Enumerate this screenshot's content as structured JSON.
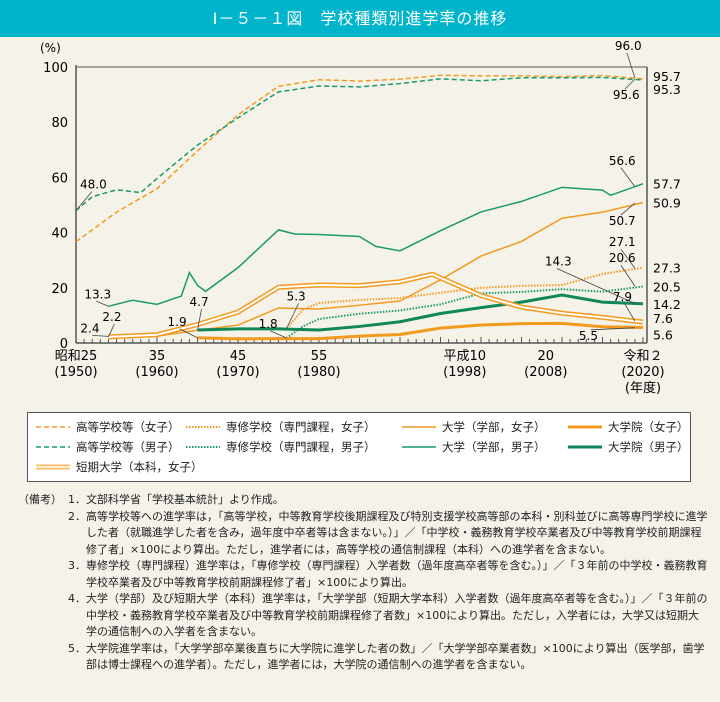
{
  "title": "Ⅰ－５－１図　学校種類別進学率の推移",
  "colors": {
    "title_bar": "#00b4cc",
    "orange": "#f39a1e",
    "light_orange": "#f7bd60",
    "green": "#1a9a6a",
    "dark_green": "#10875a"
  },
  "chart_data": {
    "type": "line",
    "ylabel": "(%)",
    "ylim": [
      0,
      100
    ],
    "xlim": [
      1950,
      2020
    ],
    "yticks": [
      0,
      20,
      40,
      60,
      80,
      100
    ],
    "xticks": [
      {
        "year": 1950,
        "label1": "昭和25",
        "label2": "(1950)"
      },
      {
        "year": 1960,
        "label1": "35",
        "label2": "(1960)"
      },
      {
        "year": 1970,
        "label1": "45",
        "label2": "(1970)"
      },
      {
        "year": 1980,
        "label1": "55",
        "label2": "(1980)"
      },
      {
        "year": 1998,
        "label1": "平成10",
        "label2": "(1998)"
      },
      {
        "year": 2008,
        "label1": "20",
        "label2": "(2008)"
      },
      {
        "year": 2020,
        "label1": "令和２",
        "label2": "(2020)",
        "label3": "(年度)"
      }
    ],
    "grid": false,
    "legend_placement": "bottom",
    "series": [
      {
        "name": "高等学校等（女子）",
        "style": "dashed",
        "color": "#f39a1e",
        "x": [
          1950,
          1955,
          1960,
          1965,
          1970,
          1975,
          1980,
          1985,
          1990,
          1995,
          2000,
          2005,
          2010,
          2015,
          2020
        ],
        "y": [
          36.7,
          47.4,
          55.9,
          69.6,
          82.7,
          93.0,
          95.4,
          94.9,
          95.6,
          97.0,
          96.8,
          96.8,
          96.5,
          96.9,
          95.7
        ]
      },
      {
        "name": "高等学校等（男子）",
        "style": "dashed",
        "color": "#1a9a6a",
        "x": [
          1950,
          1952,
          1955,
          1958,
          1960,
          1965,
          1970,
          1975,
          1980,
          1985,
          1990,
          1995,
          2000,
          2005,
          2010,
          2015,
          2020
        ],
        "y": [
          48.0,
          53.0,
          55.5,
          54.5,
          59.6,
          71.7,
          81.6,
          91.0,
          93.1,
          92.8,
          94.0,
          95.7,
          95.0,
          96.1,
          96.1,
          96.2,
          95.3
        ]
      },
      {
        "name": "専修学校（専門課程，女子）",
        "style": "dotted",
        "color": "#f39a1e",
        "x": [
          1976,
          1978,
          1980,
          1985,
          1990,
          1995,
          2000,
          2005,
          2010,
          2015,
          2020
        ],
        "y": [
          5.3,
          12.0,
          14.5,
          15.6,
          16.3,
          18.2,
          20.0,
          20.7,
          21.0,
          25.0,
          27.3
        ]
      },
      {
        "name": "専修学校（専門課程，男子）",
        "style": "dotted",
        "color": "#1a9a6a",
        "x": [
          1976,
          1978,
          1980,
          1985,
          1990,
          1995,
          2000,
          2005,
          2010,
          2015,
          2020
        ],
        "y": [
          1.8,
          6.0,
          8.7,
          10.6,
          11.8,
          14.0,
          18.0,
          18.5,
          19.5,
          18.6,
          20.5
        ]
      },
      {
        "name": "大学（学部，女子）",
        "style": "solid",
        "color": "#f39a1e",
        "x": [
          1954,
          1960,
          1965,
          1970,
          1975,
          1980,
          1985,
          1990,
          1995,
          2000,
          2005,
          2010,
          2015,
          2020
        ],
        "y": [
          2.4,
          2.5,
          4.6,
          6.5,
          12.7,
          12.3,
          13.7,
          15.2,
          22.9,
          31.5,
          36.8,
          45.2,
          47.4,
          50.9
        ]
      },
      {
        "name": "大学（学部，男子）",
        "style": "solid",
        "color": "#1a9a6a",
        "x": [
          1954,
          1957,
          1960,
          1963,
          1964,
          1965,
          1966,
          1970,
          1975,
          1977,
          1980,
          1985,
          1987,
          1990,
          1995,
          2000,
          2005,
          2010,
          2015,
          2016,
          2020
        ],
        "y": [
          13.3,
          15.5,
          14.0,
          17.0,
          25.5,
          20.9,
          18.7,
          27.3,
          41.0,
          39.5,
          39.3,
          38.6,
          35.0,
          33.4,
          40.7,
          47.5,
          51.3,
          56.4,
          55.4,
          53.5,
          57.7
        ]
      },
      {
        "name": "大学院（女子）",
        "style": "thick",
        "color": "#f39a1e",
        "x": [
          1965,
          1970,
          1975,
          1980,
          1985,
          1990,
          1995,
          2000,
          2005,
          2010,
          2015,
          2020
        ],
        "y": [
          1.9,
          1.5,
          1.6,
          1.6,
          2.5,
          3.1,
          5.4,
          6.5,
          7.0,
          7.1,
          5.9,
          5.6
        ]
      },
      {
        "name": "大学院（男子）",
        "style": "thick",
        "color": "#10875a",
        "x": [
          1965,
          1970,
          1975,
          1980,
          1985,
          1990,
          1995,
          2000,
          2005,
          2010,
          2015,
          2020
        ],
        "y": [
          4.7,
          5.1,
          5.1,
          4.7,
          6.0,
          7.7,
          10.7,
          12.8,
          14.8,
          17.4,
          14.8,
          14.2
        ]
      },
      {
        "name": "短期大学（本科，女子）",
        "style": "double",
        "color": "#f39a1e",
        "x": [
          1954,
          1960,
          1965,
          1970,
          1975,
          1980,
          1985,
          1990,
          1994,
          2000,
          2005,
          2010,
          2015,
          2020
        ],
        "y": [
          2.2,
          3.0,
          6.7,
          11.2,
          20.2,
          21.0,
          20.8,
          22.2,
          24.9,
          17.2,
          13.0,
          10.8,
          9.3,
          7.6
        ]
      }
    ],
    "annotations": [
      {
        "text": "48.0",
        "x": 1950,
        "y": 48.0
      },
      {
        "text": "13.3",
        "x": 1954,
        "y": 13.3
      },
      {
        "text": "2.4",
        "x": 1954,
        "y": 2.4
      },
      {
        "text": "2.2",
        "x": 1954,
        "y": 2.2
      },
      {
        "text": "1.9",
        "x": 1965,
        "y": 1.9
      },
      {
        "text": "4.7",
        "x": 1965,
        "y": 4.7
      },
      {
        "text": "5.3",
        "x": 1976,
        "y": 5.3
      },
      {
        "text": "1.8",
        "x": 1976,
        "y": 1.8
      },
      {
        "text": "96.0",
        "x": 2019,
        "y": 96.0
      },
      {
        "text": "95.6",
        "x": 2019,
        "y": 95.6
      },
      {
        "text": "56.6",
        "x": 2019,
        "y": 56.6
      },
      {
        "text": "50.7",
        "x": 2019,
        "y": 50.7
      },
      {
        "text": "27.1",
        "x": 2019,
        "y": 27.1
      },
      {
        "text": "20.6",
        "x": 2019,
        "y": 20.6
      },
      {
        "text": "14.3",
        "x": 2019,
        "y": 14.3
      },
      {
        "text": "7.9",
        "x": 2019,
        "y": 7.9
      },
      {
        "text": "5.5",
        "x": 2019,
        "y": 5.5
      }
    ],
    "end_labels": [
      {
        "text": "95.7",
        "y": 95.7
      },
      {
        "text": "95.3",
        "y": 95.3
      },
      {
        "text": "57.7",
        "y": 57.7
      },
      {
        "text": "50.9",
        "y": 50.9
      },
      {
        "text": "27.3",
        "y": 27.3
      },
      {
        "text": "20.5",
        "y": 20.5
      },
      {
        "text": "14.2",
        "y": 14.2
      },
      {
        "text": "7.6",
        "y": 7.6
      },
      {
        "text": "5.6",
        "y": 5.6
      }
    ]
  },
  "legend": [
    "高等学校等（女子）",
    "専修学校（専門課程，女子）",
    "大学（学部，女子）",
    "大学院（女子）",
    "高等学校等（男子）",
    "専修学校（専門課程，男子）",
    "大学（学部，男子）",
    "大学院（男子）",
    "短期大学（本科，女子）"
  ],
  "notes": {
    "heading": "（備考）",
    "items": [
      {
        "num": "1．",
        "text": "文部科学省「学校基本統計」より作成。"
      },
      {
        "num": "2．",
        "text": "高等学校等への進学率は，「高等学校，中等教育学校後期課程及び特別支援学校高等部の本科・別科並びに高等専門学校に進学した者（就職進学した者を含み，過年度中卒者等は含まない。）」／「中学校・義務教育学校卒業者及び中等教育学校前期課程修了者」×100により算出。ただし，進学者には，高等学校の通信制課程（本科）への進学者を含まない。"
      },
      {
        "num": "3．",
        "text": "専修学校（専門課程）進学率は，「専修学校（専門課程）入学者数（過年度高卒者等を含む。）」／「３年前の中学校・義務教育学校卒業者及び中等教育学校前期課程修了者」×100により算出。"
      },
      {
        "num": "4．",
        "text": "大学（学部）及び短期大学（本科）進学率は，「大学学部（短期大学本科）入学者数（過年度高卒者等を含む。）」／「３年前の中学校・義務教育学校卒業者及び中等教育学校前期課程修了者数」×100により算出。ただし，入学者には，大学又は短期大学の通信制への入学者を含まない。"
      },
      {
        "num": "5．",
        "text": "大学院進学率は，「大学学部卒業後直ちに大学院に進学した者の数」／「大学学部卒業者数」×100により算出（医学部，歯学部は博士課程への進学者）。ただし，進学者には，大学院の通信制への進学者を含まない。"
      }
    ]
  }
}
